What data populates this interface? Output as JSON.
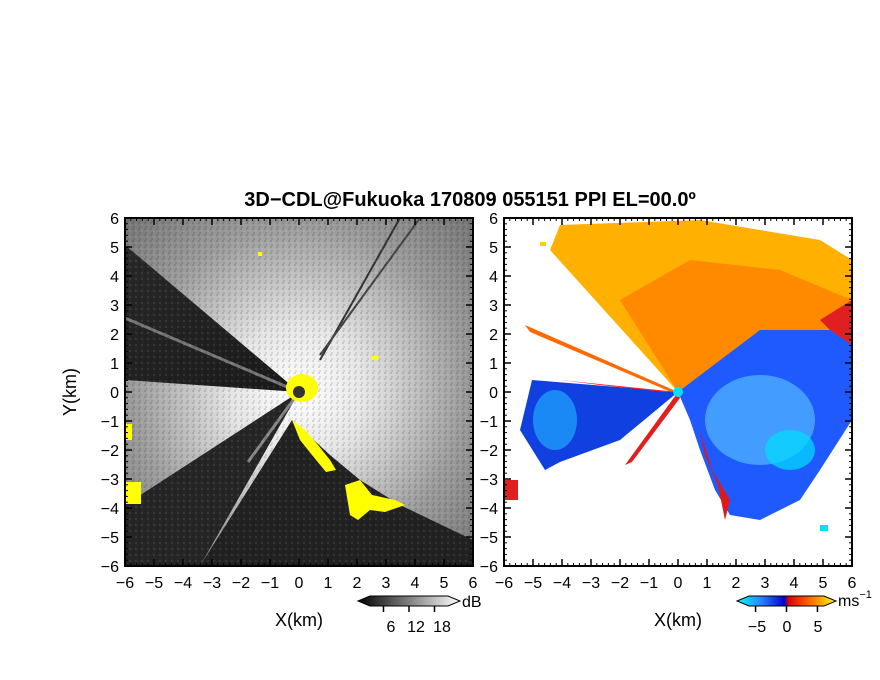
{
  "title": "3D−CDL@Fukuoka 170809 055151 PPI EL=00.0º",
  "chart_data": [
    {
      "type": "heatmap",
      "panel": "left",
      "quantity": "SNR",
      "xlabel": "X(km)",
      "ylabel": "Y(km)",
      "xlim": [
        -6,
        6
      ],
      "ylim": [
        -6,
        6
      ],
      "xticks": [
        -6,
        -5,
        -4,
        -3,
        -2,
        -1,
        0,
        1,
        2,
        3,
        4,
        5,
        6
      ],
      "yticks": [
        -6,
        -5,
        -4,
        -3,
        -2,
        -1,
        0,
        1,
        2,
        3,
        4,
        5,
        6
      ],
      "colorbar": {
        "unit": "dB",
        "ticks": [
          6,
          12,
          18
        ],
        "range": [
          0,
          24
        ],
        "colormap": "grayscale"
      },
      "highlight_color": "#ffff00"
    },
    {
      "type": "heatmap",
      "panel": "right",
      "quantity": "Doppler velocity",
      "xlabel": "X(km)",
      "ylabel": "",
      "xlim": [
        -6,
        6
      ],
      "ylim": [
        -6,
        6
      ],
      "xticks": [
        -6,
        -5,
        -4,
        -3,
        -2,
        -1,
        0,
        1,
        2,
        3,
        4,
        5,
        6
      ],
      "yticks": [
        -6,
        -5,
        -4,
        -3,
        -2,
        -1,
        0,
        1,
        2,
        3,
        4,
        5,
        6
      ],
      "colorbar": {
        "unit": "ms",
        "unit_exponent": "−1",
        "ticks": [
          -5,
          0,
          5
        ],
        "range": [
          -8,
          8
        ],
        "colormap": "cyan-blue-red-yellow"
      }
    }
  ],
  "colorbar_left": {
    "unit": "dB",
    "tick_labels": [
      "6",
      "12",
      "18"
    ]
  },
  "colorbar_right": {
    "unit": "ms",
    "unit_exponent": "−1",
    "tick_labels": [
      "−5",
      "0",
      "5"
    ]
  }
}
